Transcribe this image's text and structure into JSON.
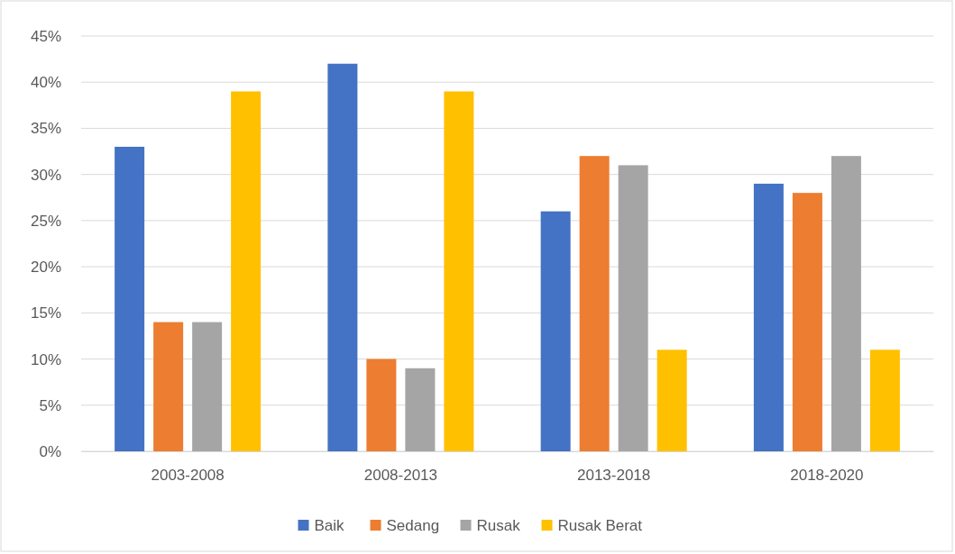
{
  "chart_data": {
    "type": "bar",
    "categories": [
      "2003-2008",
      "2008-2013",
      "2013-2018",
      "2018-2020"
    ],
    "series": [
      {
        "name": "Baik",
        "color": "#4472c4",
        "values": [
          33,
          42,
          26,
          29
        ]
      },
      {
        "name": "Sedang",
        "color": "#ed7d31",
        "values": [
          14,
          10,
          32,
          28
        ]
      },
      {
        "name": "Rusak",
        "color": "#a5a5a5",
        "values": [
          14,
          9,
          31,
          32
        ]
      },
      {
        "name": "Rusak Berat",
        "color": "#ffc000",
        "values": [
          39,
          39,
          11,
          11
        ]
      }
    ],
    "ylim": [
      0,
      45
    ],
    "yticks": [
      {
        "value": 0,
        "label": "0%"
      },
      {
        "value": 5,
        "label": "5%"
      },
      {
        "value": 10,
        "label": "10%"
      },
      {
        "value": 15,
        "label": "15%"
      },
      {
        "value": 20,
        "label": "20%"
      },
      {
        "value": 25,
        "label": "25%"
      },
      {
        "value": 30,
        "label": "30%"
      },
      {
        "value": 35,
        "label": "35%"
      },
      {
        "value": 40,
        "label": "40%"
      },
      {
        "value": 45,
        "label": "45%"
      }
    ],
    "grid": "y",
    "legend": "bottom"
  }
}
